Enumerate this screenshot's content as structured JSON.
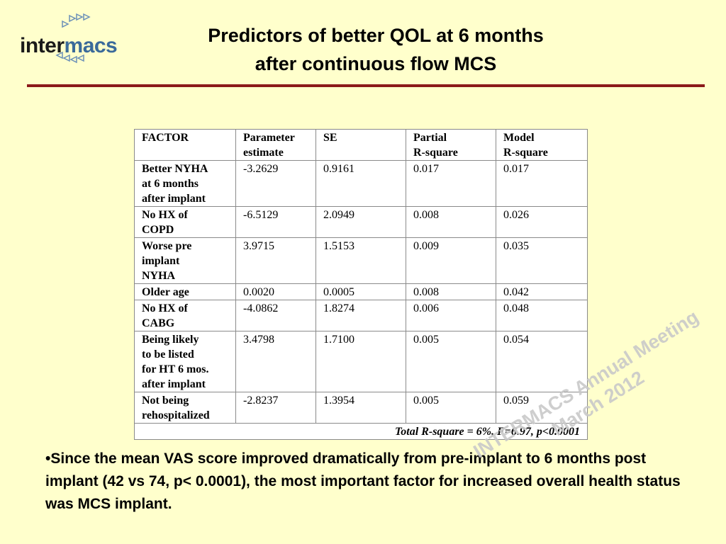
{
  "logo": {
    "text_part1": "inter",
    "text_part2": "macs"
  },
  "title": {
    "line1": "Predictors of better QOL at 6 months",
    "line2": "after continuous flow MCS"
  },
  "table": {
    "headers": [
      [
        "FACTOR"
      ],
      [
        "Parameter",
        "estimate"
      ],
      [
        "SE"
      ],
      [
        "Partial",
        "R-square"
      ],
      [
        "Model",
        "R-square"
      ]
    ],
    "rows": [
      {
        "factor": [
          "Better NYHA",
          "at 6 months",
          "after implant"
        ],
        "estimate": "-3.2629",
        "se": "0.9161",
        "partial": "0.017",
        "model": "0.017"
      },
      {
        "factor": [
          "No HX of",
          "COPD"
        ],
        "estimate": "-6.5129",
        "se": "2.0949",
        "partial": "0.008",
        "model": "0.026"
      },
      {
        "factor": [
          "Worse pre",
          "implant",
          "NYHA"
        ],
        "estimate": "3.9715",
        "se": "1.5153",
        "partial": "0.009",
        "model": "0.035"
      },
      {
        "factor": [
          "Older age"
        ],
        "estimate": "0.0020",
        "se": "0.0005",
        "partial": "0.008",
        "model": "0.042"
      },
      {
        "factor": [
          "No HX of",
          "CABG"
        ],
        "estimate": "-4.0862",
        "se": "1.8274",
        "partial": "0.006",
        "model": "0.048"
      },
      {
        "factor": [
          "Being likely",
          "to be listed",
          "for HT 6 mos.",
          "after implant"
        ],
        "estimate": "3.4798",
        "se": "1.7100",
        "partial": "0.005",
        "model": "0.054"
      },
      {
        "factor": [
          "Not being",
          "rehospitalized"
        ],
        "estimate": "-2.8237",
        "se": "1.3954",
        "partial": "0.005",
        "model": "0.059"
      }
    ],
    "footer": "Total R-square = 6%, F=6.97, p<0.0001"
  },
  "bullet": {
    "text": "•Since the mean VAS score improved dramatically from pre-implant to 6 months post implant (42 vs 74, p< 0.0001), the most important factor for increased overall health status was MCS implant."
  },
  "watermark": {
    "line1": "INTERMACS Annual Meeting",
    "line2": "March 2012"
  },
  "colors": {
    "background": "#FFFFCC",
    "rule": "#8B1A1A",
    "logo_accent": "#3a6a9a"
  }
}
